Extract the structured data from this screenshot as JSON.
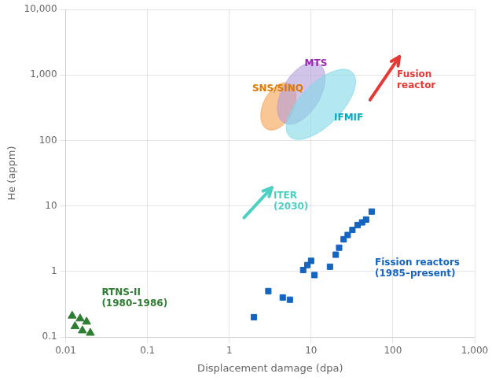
{
  "chart_data": {
    "type": "scatter",
    "xlabel": "Displacement damage (dpa)",
    "ylabel": "He (appm)",
    "log": true,
    "grid": true,
    "xlim": [
      0.01,
      1000
    ],
    "ylim": [
      0.1,
      10000
    ],
    "xticks": [
      0.01,
      0.1,
      1,
      10,
      100,
      {
        "value": 1000,
        "label": "1,000"
      }
    ],
    "yticks": [
      0.1,
      1,
      10,
      100,
      {
        "value": 1000,
        "label": "1,000"
      },
      {
        "value": 10000,
        "label": "10,000"
      }
    ],
    "series": [
      {
        "color": "#1565c0",
        "marker": "square",
        "x": [
          2.0,
          3.0,
          4.5,
          5.5,
          8,
          9,
          10,
          11,
          17,
          20,
          22,
          25,
          28,
          32,
          37,
          42,
          47,
          55
        ],
        "y": [
          0.2,
          0.5,
          0.4,
          0.37,
          1.05,
          1.25,
          1.45,
          0.88,
          1.18,
          1.8,
          2.3,
          3.1,
          3.6,
          4.3,
          5.1,
          5.6,
          6.2,
          8.2
        ]
      },
      {
        "color": "#2e7d32",
        "marker": "triangle",
        "x": [
          0.012,
          0.015,
          0.018,
          0.013,
          0.016,
          0.02
        ],
        "y": [
          0.21,
          0.19,
          0.17,
          0.145,
          0.125,
          0.115
        ]
      }
    ],
    "regions": [
      {
        "color": "#f5a050",
        "cx_log": 0.6,
        "cy_log": 2.52,
        "width_log": 0.38,
        "height_log": 0.75,
        "angle": -18
      },
      {
        "color": "#b39ddb",
        "cx_log": 0.88,
        "cy_log": 2.72,
        "width_log": 0.48,
        "height_log": 1.0,
        "angle": -22
      },
      {
        "color": "#80d8e8",
        "cx_log": 1.12,
        "cy_log": 2.55,
        "width_log": 0.55,
        "height_log": 1.25,
        "angle": -35
      }
    ],
    "arrows": [
      {
        "color": "#4dd0c4",
        "x1_log": 0.18,
        "y1_log": 0.82,
        "x2_log": 0.52,
        "y2_log": 1.28
      },
      {
        "color": "#e53935",
        "x1_log": 1.72,
        "y1_log": 2.62,
        "x2_log": 2.08,
        "y2_log": 3.28
      }
    ],
    "annotations": [
      {
        "text": "SNS/SINQ",
        "color": "#e07800",
        "x_log": 0.28,
        "y_log": 2.72
      },
      {
        "text": "MTS",
        "color": "#9c27b0",
        "x_log": 0.92,
        "y_log": 3.1
      },
      {
        "text": "IFMIF",
        "color": "#00acc1",
        "x_log": 1.28,
        "y_log": 2.42
      },
      {
        "text": "ITER\n(2030)",
        "color": "#4dd0c4",
        "x_log": 0.54,
        "y_log": 1.22
      },
      {
        "text": "Fusion\nreactor",
        "color": "#e53935",
        "x_log": 2.05,
        "y_log": 3.08
      },
      {
        "text": "Fission reactors\n(1985–present)",
        "color": "#1565c0",
        "x_log": 1.78,
        "y_log": 0.2
      },
      {
        "text": "RTNS-II\n(1980–1986)",
        "color": "#2e7d32",
        "x_log": -1.56,
        "y_log": -0.56
      }
    ]
  }
}
